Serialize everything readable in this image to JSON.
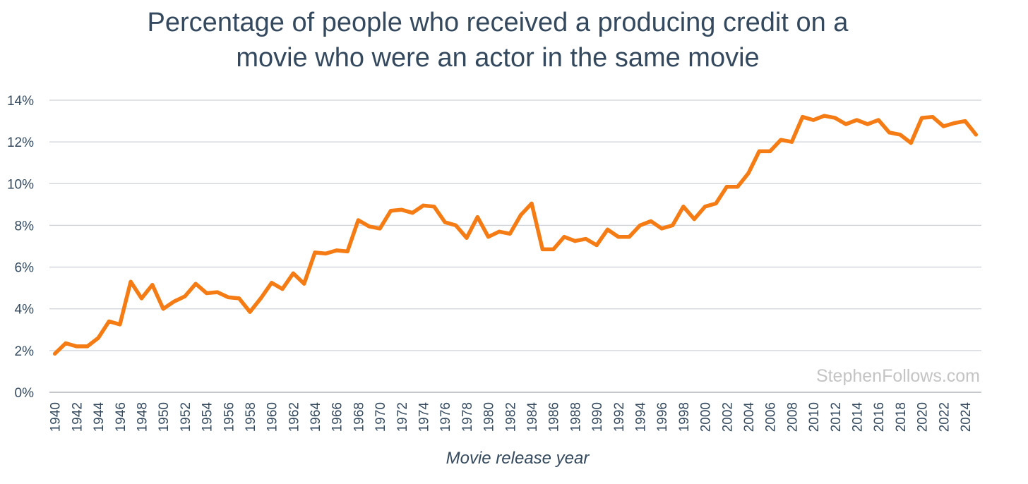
{
  "chart_data": {
    "type": "line",
    "title_lines": [
      "Percentage of people who received a producing credit on a",
      "movie who were an actor in the same movie"
    ],
    "xlabel": "Movie release year",
    "ylabel": "",
    "ylim": [
      0,
      14
    ],
    "y_ticks": [
      "0%",
      "2%",
      "4%",
      "6%",
      "8%",
      "10%",
      "12%",
      "14%"
    ],
    "x_ticks": [
      "1940",
      "1942",
      "1944",
      "1946",
      "1948",
      "1950",
      "1952",
      "1954",
      "1956",
      "1958",
      "1960",
      "1962",
      "1964",
      "1966",
      "1968",
      "1970",
      "1972",
      "1974",
      "1976",
      "1978",
      "1980",
      "1982",
      "1984",
      "1986",
      "1988",
      "1990",
      "1992",
      "1994",
      "1996",
      "1998",
      "2000",
      "2002",
      "2004",
      "2006",
      "2008",
      "2010",
      "2012",
      "2014",
      "2016",
      "2018",
      "2020",
      "2022",
      "2024"
    ],
    "grid": true,
    "series": [
      {
        "color": "#f57c14",
        "x": [
          1940,
          1941,
          1942,
          1943,
          1944,
          1945,
          1946,
          1947,
          1948,
          1949,
          1950,
          1951,
          1952,
          1953,
          1954,
          1955,
          1956,
          1957,
          1958,
          1959,
          1960,
          1961,
          1962,
          1963,
          1964,
          1965,
          1966,
          1967,
          1968,
          1969,
          1970,
          1971,
          1972,
          1973,
          1974,
          1975,
          1976,
          1977,
          1978,
          1979,
          1980,
          1981,
          1982,
          1983,
          1984,
          1985,
          1986,
          1987,
          1988,
          1989,
          1990,
          1991,
          1992,
          1993,
          1994,
          1995,
          1996,
          1997,
          1998,
          1999,
          2000,
          2001,
          2002,
          2003,
          2004,
          2005,
          2006,
          2007,
          2008,
          2009,
          2010,
          2011,
          2012,
          2013,
          2014,
          2015,
          2016,
          2017,
          2018,
          2019,
          2020,
          2021,
          2022,
          2023,
          2024,
          2025
        ],
        "values": [
          1.85,
          2.35,
          2.2,
          2.2,
          2.6,
          3.4,
          3.25,
          5.3,
          4.5,
          5.15,
          4.0,
          4.35,
          4.6,
          5.2,
          4.75,
          4.8,
          4.55,
          4.5,
          3.85,
          4.5,
          5.25,
          4.95,
          5.7,
          5.2,
          6.7,
          6.65,
          6.8,
          6.75,
          8.25,
          7.95,
          7.85,
          8.7,
          8.75,
          8.6,
          8.95,
          8.9,
          8.15,
          8.0,
          7.4,
          8.4,
          7.45,
          7.7,
          7.6,
          8.5,
          9.05,
          6.85,
          6.85,
          7.45,
          7.25,
          7.35,
          7.05,
          7.8,
          7.45,
          7.45,
          8.0,
          8.2,
          7.85,
          8.0,
          8.9,
          8.3,
          8.9,
          9.05,
          9.85,
          9.85,
          10.5,
          11.55,
          11.55,
          12.1,
          12.0,
          13.2,
          13.05,
          13.25,
          13.15,
          12.85,
          13.05,
          12.85,
          13.05,
          12.45,
          12.35,
          11.95,
          13.15,
          13.2,
          12.75,
          12.9,
          13.0,
          12.35
        ]
      }
    ],
    "watermark": "StephenFollows.com"
  }
}
